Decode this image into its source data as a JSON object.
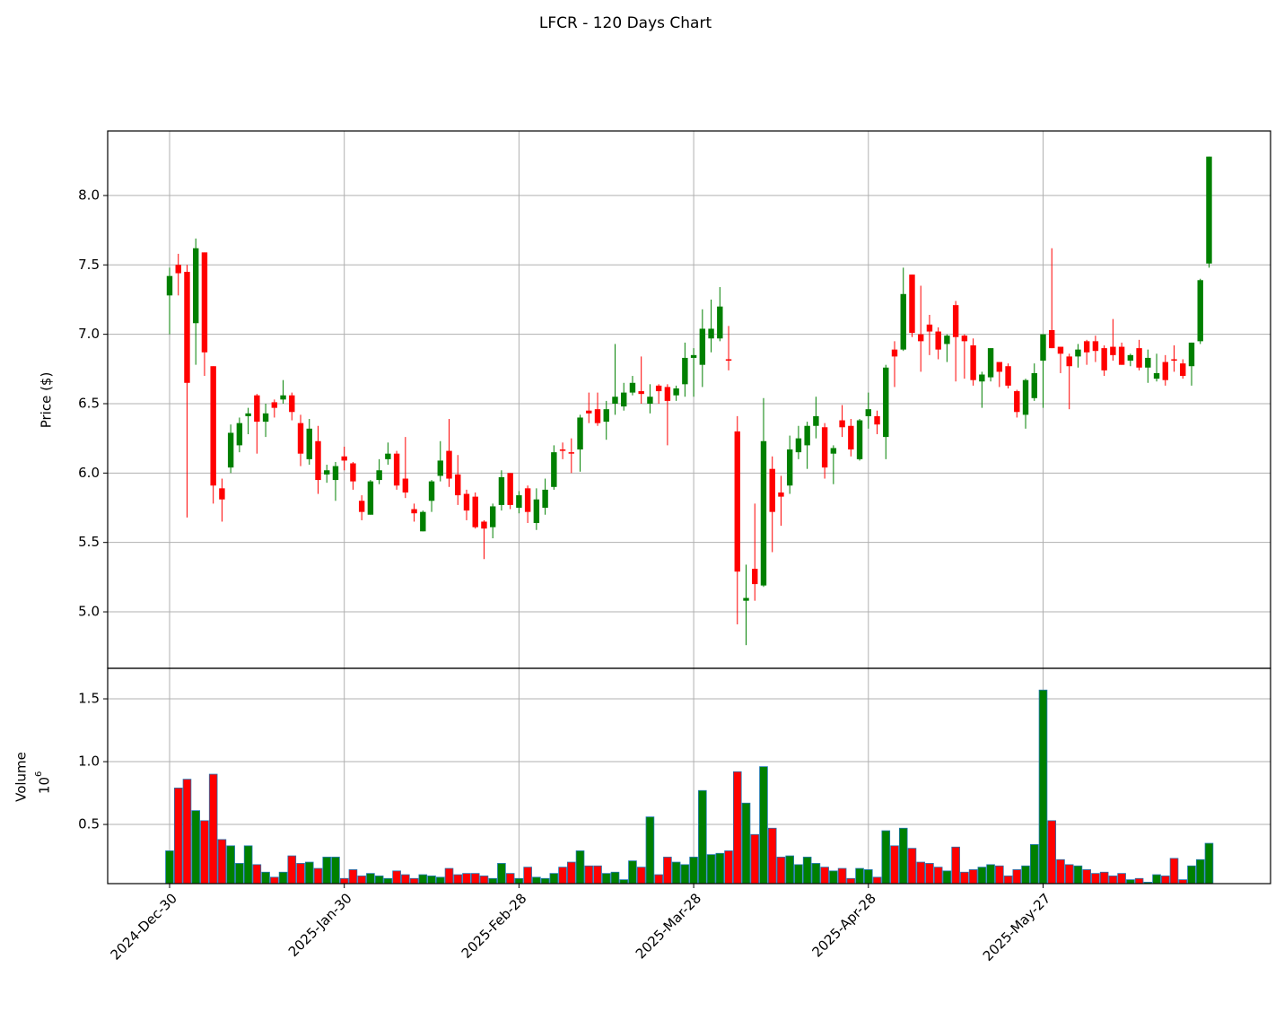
{
  "chart_data": {
    "type": "candlestick",
    "title": "LFCR - 120 Days Chart",
    "ylabel": "Price ($)",
    "volume_label": "Volume",
    "volume_scale_base": "10",
    "volume_scale_exponent": "6",
    "categories": [
      "2024-Dec-30",
      null,
      null,
      null,
      null,
      null,
      null,
      null,
      null,
      null,
      null,
      null,
      null,
      null,
      null,
      null,
      null,
      null,
      null,
      null,
      "2025-Jan-30",
      null,
      null,
      null,
      null,
      null,
      null,
      null,
      null,
      null,
      null,
      null,
      null,
      null,
      null,
      null,
      null,
      null,
      null,
      null,
      "2025-Feb-28",
      null,
      null,
      null,
      null,
      null,
      null,
      null,
      null,
      null,
      null,
      null,
      null,
      null,
      null,
      null,
      null,
      null,
      null,
      null,
      "2025-Mar-28",
      null,
      null,
      null,
      null,
      null,
      null,
      null,
      null,
      null,
      null,
      null,
      null,
      null,
      null,
      null,
      null,
      null,
      null,
      null,
      "2025-Apr-28",
      null,
      null,
      null,
      null,
      null,
      null,
      null,
      null,
      null,
      null,
      null,
      null,
      null,
      null,
      null,
      null,
      null,
      null,
      null,
      "2025-May-27",
      null,
      null,
      null,
      null,
      null,
      null,
      null,
      null,
      null,
      null,
      null,
      null,
      null,
      null,
      null,
      null,
      null,
      null,
      null
    ],
    "open": [
      7.28,
      7.5,
      7.45,
      7.08,
      7.59,
      6.77,
      5.89,
      6.04,
      6.2,
      6.41,
      6.56,
      6.37,
      6.51,
      6.53,
      6.56,
      6.36,
      6.1,
      6.23,
      5.99,
      5.95,
      6.12,
      6.07,
      5.8,
      5.7,
      5.95,
      6.1,
      6.14,
      5.96,
      5.74,
      5.58,
      5.8,
      5.98,
      6.16,
      5.99,
      5.85,
      5.83,
      5.65,
      5.61,
      5.77,
      6.0,
      5.75,
      5.89,
      5.64,
      5.75,
      5.9,
      6.17,
      6.15,
      6.17,
      6.45,
      6.46,
      6.37,
      6.5,
      6.48,
      6.58,
      6.59,
      6.5,
      6.63,
      6.62,
      6.56,
      6.64,
      6.83,
      6.78,
      6.97,
      6.97,
      6.82,
      6.3,
      5.08,
      5.31,
      5.19,
      6.03,
      5.86,
      5.91,
      6.15,
      6.2,
      6.34,
      6.33,
      6.14,
      6.38,
      6.34,
      6.1,
      6.41,
      6.41,
      6.26,
      6.89,
      6.89,
      7.43,
      7.0,
      7.07,
      7.02,
      6.93,
      7.21,
      6.99,
      6.92,
      6.66,
      6.69,
      6.8,
      6.77,
      6.59,
      6.42,
      6.54,
      6.81,
      7.03,
      6.91,
      6.84,
      6.84,
      6.95,
      6.95,
      6.9,
      6.91,
      6.91,
      6.81,
      6.9,
      6.76,
      6.68,
      6.8,
      6.82,
      6.79,
      6.77,
      6.95,
      7.51
    ],
    "high": [
      7.48,
      7.58,
      7.5,
      7.69,
      7.59,
      6.77,
      5.96,
      6.35,
      6.4,
      6.47,
      6.57,
      6.5,
      6.53,
      6.67,
      6.58,
      6.42,
      6.39,
      6.34,
      6.06,
      6.08,
      6.19,
      6.08,
      5.84,
      5.95,
      6.1,
      6.22,
      6.16,
      6.26,
      5.78,
      5.73,
      5.95,
      6.23,
      6.39,
      6.13,
      5.88,
      5.86,
      5.66,
      5.78,
      6.02,
      6.0,
      5.87,
      5.91,
      5.89,
      5.96,
      6.2,
      6.22,
      6.25,
      6.42,
      6.58,
      6.58,
      6.52,
      6.93,
      6.65,
      6.7,
      6.84,
      6.64,
      6.64,
      6.64,
      6.63,
      6.94,
      6.9,
      7.18,
      7.25,
      7.34,
      7.06,
      6.41,
      5.34,
      5.78,
      6.54,
      6.12,
      5.98,
      6.27,
      6.34,
      6.37,
      6.55,
      6.36,
      6.2,
      6.49,
      6.39,
      6.39,
      6.58,
      6.45,
      6.78,
      6.95,
      7.48,
      7.43,
      7.35,
      7.14,
      7.05,
      7.0,
      7.24,
      7.0,
      6.97,
      6.73,
      6.9,
      6.8,
      6.79,
      6.6,
      6.68,
      6.79,
      7.0,
      7.62,
      6.91,
      6.86,
      6.93,
      6.96,
      6.99,
      6.92,
      7.11,
      6.94,
      6.86,
      6.96,
      6.89,
      6.86,
      6.85,
      6.92,
      6.82,
      6.94,
      7.4,
      8.28
    ],
    "low": [
      7.0,
      7.28,
      5.68,
      6.78,
      6.7,
      5.78,
      5.65,
      6.0,
      6.15,
      6.28,
      6.14,
      6.26,
      6.4,
      6.5,
      6.38,
      6.05,
      6.06,
      5.85,
      5.93,
      5.8,
      6.02,
      5.88,
      5.66,
      5.7,
      5.92,
      6.06,
      5.88,
      5.82,
      5.65,
      5.58,
      5.72,
      5.94,
      5.9,
      5.77,
      5.66,
      5.6,
      5.38,
      5.53,
      5.73,
      5.74,
      5.71,
      5.64,
      5.59,
      5.7,
      5.88,
      6.1,
      6.0,
      6.01,
      6.36,
      6.34,
      6.24,
      6.42,
      6.45,
      6.56,
      6.5,
      6.43,
      6.5,
      6.2,
      6.52,
      6.55,
      6.55,
      6.62,
      6.87,
      6.95,
      6.74,
      4.91,
      4.76,
      5.08,
      5.18,
      5.43,
      5.62,
      5.85,
      6.1,
      6.03,
      6.25,
      5.96,
      5.92,
      6.26,
      6.12,
      6.09,
      6.32,
      6.28,
      6.1,
      6.62,
      6.88,
      6.98,
      6.73,
      6.85,
      6.82,
      6.8,
      6.66,
      6.68,
      6.63,
      6.47,
      6.66,
      6.62,
      6.61,
      6.4,
      6.32,
      6.52,
      6.47,
      6.9,
      6.72,
      6.46,
      6.76,
      6.78,
      6.8,
      6.7,
      6.81,
      6.78,
      6.77,
      6.74,
      6.65,
      6.66,
      6.63,
      6.73,
      6.68,
      6.63,
      6.93,
      7.48
    ],
    "close": [
      7.42,
      7.44,
      6.65,
      7.62,
      6.87,
      5.91,
      5.81,
      6.29,
      6.36,
      6.43,
      6.37,
      6.43,
      6.47,
      6.56,
      6.44,
      6.14,
      6.32,
      5.95,
      6.02,
      6.05,
      6.09,
      5.94,
      5.72,
      5.94,
      6.02,
      6.14,
      5.91,
      5.86,
      5.71,
      5.72,
      5.94,
      6.09,
      5.96,
      5.84,
      5.73,
      5.61,
      5.6,
      5.76,
      5.97,
      5.77,
      5.84,
      5.72,
      5.81,
      5.88,
      6.15,
      6.16,
      6.14,
      6.4,
      6.43,
      6.36,
      6.46,
      6.55,
      6.58,
      6.65,
      6.57,
      6.55,
      6.59,
      6.52,
      6.61,
      6.83,
      6.85,
      7.04,
      7.04,
      7.2,
      6.81,
      5.29,
      5.1,
      5.2,
      6.23,
      5.72,
      5.83,
      6.17,
      6.25,
      6.34,
      6.41,
      6.04,
      6.18,
      6.33,
      6.17,
      6.38,
      6.46,
      6.35,
      6.76,
      6.84,
      7.29,
      7.01,
      6.95,
      7.02,
      6.89,
      6.99,
      6.98,
      6.95,
      6.67,
      6.71,
      6.9,
      6.73,
      6.63,
      6.44,
      6.67,
      6.72,
      7.0,
      6.9,
      6.86,
      6.77,
      6.89,
      6.87,
      6.88,
      6.74,
      6.85,
      6.78,
      6.85,
      6.76,
      6.83,
      6.72,
      6.67,
      6.81,
      6.7,
      6.94,
      7.39,
      8.28
    ],
    "volume": [
      0.29,
      0.79,
      0.86,
      0.61,
      0.53,
      0.9,
      0.38,
      0.33,
      0.19,
      0.33,
      0.18,
      0.12,
      0.08,
      0.12,
      0.25,
      0.19,
      0.2,
      0.15,
      0.24,
      0.24,
      0.07,
      0.14,
      0.09,
      0.11,
      0.09,
      0.07,
      0.13,
      0.1,
      0.07,
      0.1,
      0.09,
      0.08,
      0.15,
      0.1,
      0.11,
      0.11,
      0.09,
      0.07,
      0.19,
      0.11,
      0.07,
      0.16,
      0.08,
      0.07,
      0.11,
      0.16,
      0.2,
      0.29,
      0.17,
      0.17,
      0.11,
      0.12,
      0.06,
      0.21,
      0.16,
      0.56,
      0.1,
      0.24,
      0.2,
      0.18,
      0.24,
      0.77,
      0.26,
      0.27,
      0.29,
      0.92,
      0.67,
      0.42,
      0.96,
      0.47,
      0.24,
      0.25,
      0.18,
      0.24,
      0.19,
      0.16,
      0.13,
      0.15,
      0.07,
      0.15,
      0.14,
      0.08,
      0.45,
      0.33,
      0.47,
      0.31,
      0.2,
      0.19,
      0.16,
      0.13,
      0.32,
      0.12,
      0.14,
      0.16,
      0.18,
      0.17,
      0.09,
      0.14,
      0.17,
      0.34,
      1.57,
      0.53,
      0.22,
      0.18,
      0.17,
      0.14,
      0.11,
      0.12,
      0.09,
      0.11,
      0.06,
      0.07,
      0.04,
      0.1,
      0.09,
      0.23,
      0.06,
      0.17,
      0.22,
      0.35
    ],
    "up_color": "green",
    "down_color": "red",
    "volume_edge_color": "#1f77b4",
    "ylim": [
      4.593,
      8.465
    ],
    "yticks": [
      {
        "value": 5,
        "label": "5.0"
      },
      5.5,
      {
        "value": 6,
        "label": "6.0"
      },
      6.5,
      {
        "value": 7,
        "label": "7.0"
      },
      7.5,
      {
        "value": 8,
        "label": "8.0"
      }
    ],
    "volume_ylim": [
      0.029,
      1.743
    ],
    "volume_yticks": [
      0.5,
      {
        "value": 1,
        "label": "1.0"
      },
      1.5
    ],
    "grid": true
  }
}
